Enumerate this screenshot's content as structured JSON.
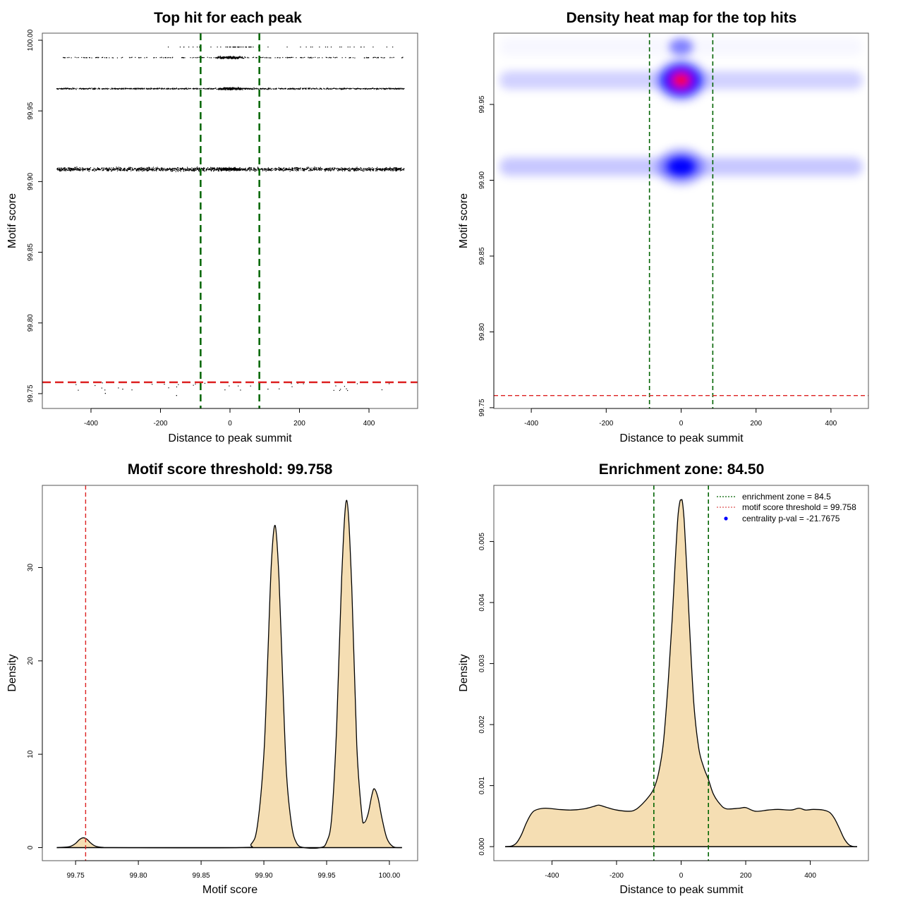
{
  "figure": {
    "background": "#ffffff",
    "colors": {
      "enrichment_line": "#006400",
      "threshold_line": "#dd2222",
      "density_fill": "#f5deb3",
      "density_stroke": "#000000",
      "scatter_point": "#000000",
      "heat_low": "#ffffff",
      "heat_mid": "#0000ff",
      "heat_high": "#ff0000",
      "legend_point": "#0000ff"
    }
  },
  "chart_data": [
    {
      "id": "top-hit-scatter",
      "type": "scatter",
      "title": "Top hit for each peak",
      "xlabel": "Distance to peak summit",
      "ylabel": "Motif score",
      "xlim": [
        -540,
        540
      ],
      "ylim": [
        99.7395,
        100.005
      ],
      "xticks": [
        -400,
        -200,
        0,
        200,
        400
      ],
      "xtick_labels": [
        "-400",
        "-200",
        "0",
        "200",
        "400"
      ],
      "yticks": [
        99.75,
        99.8,
        99.85,
        99.9,
        99.95,
        100.0
      ],
      "ytick_labels": [
        "99.75",
        "99.80",
        "99.85",
        "99.90",
        "99.95",
        "100.00"
      ],
      "grid": false,
      "vlines": [
        -84.5,
        84.5
      ],
      "hline": 99.758,
      "bands": [
        {
          "score": 99.9955,
          "density": "sparse",
          "x_range": [
            -260,
            470
          ],
          "center_cluster": [
            -10,
            70
          ]
        },
        {
          "score": 99.988,
          "density": "medium",
          "x_range": [
            -490,
            500
          ]
        },
        {
          "score": 99.966,
          "density": "dense",
          "x_range": [
            -500,
            500
          ]
        },
        {
          "score": 99.909,
          "density": "very-dense",
          "x_range": [
            -500,
            500
          ]
        },
        {
          "score": 99.755,
          "density": "sparse",
          "x_range": [
            -490,
            490
          ]
        }
      ],
      "outliers": [
        {
          "x": -360,
          "y": 99.7505
        },
        {
          "x": -155,
          "y": 99.749
        },
        {
          "x": -310,
          "y": 99.7535
        },
        {
          "x": 108,
          "y": 99.7535
        }
      ]
    },
    {
      "id": "density-heatmap",
      "type": "heatmap",
      "title": "Density heat map for the top hits",
      "xlabel": "Distance to peak summit",
      "ylabel": "Motif score",
      "xlim": [
        -500,
        500
      ],
      "ylim": [
        99.7495,
        99.997
      ],
      "xticks": [
        -400,
        -200,
        0,
        200,
        400
      ],
      "xtick_labels": [
        "-400",
        "-200",
        "0",
        "200",
        "400"
      ],
      "yticks": [
        99.75,
        99.8,
        99.85,
        99.9,
        99.95
      ],
      "ytick_labels": [
        "99.75",
        "99.80",
        "99.85",
        "99.90",
        "99.95"
      ],
      "grid": false,
      "vlines": [
        -84.5,
        84.5
      ],
      "hline": 99.758,
      "hotspots": [
        {
          "x": 0,
          "y": 99.966,
          "intensity": 1.0,
          "label": "max (red)"
        },
        {
          "x": 0,
          "y": 99.909,
          "intensity": 0.5
        },
        {
          "x": 0,
          "y": 99.988,
          "intensity": 0.22
        }
      ],
      "horizontal_bands": [
        {
          "y": 99.966,
          "intensity": 0.18
        },
        {
          "y": 99.909,
          "intensity": 0.22
        },
        {
          "y": 99.988,
          "intensity": 0.03
        }
      ]
    },
    {
      "id": "motif-score-density",
      "type": "area",
      "title": "Motif score threshold: 99.758",
      "xlabel": "Motif score",
      "ylabel": "Density",
      "xlim": [
        99.7235,
        100.0225
      ],
      "ylim": [
        -1.4,
        38.8
      ],
      "xticks": [
        99.75,
        99.8,
        99.85,
        99.9,
        99.95,
        100.0
      ],
      "xtick_labels": [
        "99.75",
        "99.80",
        "99.85",
        "99.90",
        "99.95",
        "100.00"
      ],
      "yticks": [
        0,
        10,
        20,
        30
      ],
      "ytick_labels": [
        "0",
        "10",
        "20",
        "30"
      ],
      "grid": false,
      "vline": 99.758,
      "x": [
        99.735,
        99.745,
        99.75,
        99.753,
        99.756,
        99.759,
        99.762,
        99.766,
        99.772,
        99.78,
        99.88,
        99.89,
        99.895,
        99.9,
        99.903,
        99.906,
        99.909,
        99.912,
        99.915,
        99.918,
        99.922,
        99.926,
        99.932,
        99.945,
        99.95,
        99.954,
        99.958,
        99.962,
        99.966,
        99.97,
        99.974,
        99.978,
        99.98,
        99.983,
        99.986,
        99.988,
        99.991,
        99.994,
        99.998,
        100.003,
        100.01
      ],
      "values": [
        0,
        0.1,
        0.45,
        0.85,
        1.05,
        0.9,
        0.5,
        0.15,
        0.02,
        0,
        0,
        0.4,
        2.5,
        10,
        20,
        30.5,
        34.5,
        29,
        18,
        8,
        2.5,
        0.5,
        0,
        0,
        0.6,
        3.2,
        13,
        29,
        37.2,
        28,
        11,
        3.6,
        2.7,
        3.6,
        5.6,
        6.3,
        5.3,
        3.2,
        1,
        0.1,
        0
      ]
    },
    {
      "id": "distance-density",
      "type": "area",
      "title": "Enrichment zone: 84.50",
      "xlabel": "Distance to peak summit",
      "ylabel": "Density",
      "xlim": [
        -580,
        580
      ],
      "ylim": [
        -0.00023,
        0.00592
      ],
      "xticks": [
        -400,
        -200,
        0,
        200,
        400
      ],
      "xtick_labels": [
        "-400",
        "-200",
        "0",
        "200",
        "400"
      ],
      "yticks": [
        0.0,
        0.001,
        0.002,
        0.003,
        0.004,
        0.005
      ],
      "ytick_labels": [
        "0.000",
        "0.001",
        "0.002",
        "0.003",
        "0.004",
        "0.005"
      ],
      "grid": false,
      "vlines": [
        -84.5,
        84.5
      ],
      "x": [
        -545,
        -525,
        -510,
        -495,
        -480,
        -465,
        -450,
        -420,
        -380,
        -340,
        -300,
        -270,
        -255,
        -235,
        -200,
        -160,
        -140,
        -120,
        -100,
        -84.5,
        -70,
        -55,
        -40,
        -28,
        -18,
        -10,
        -4,
        0,
        4,
        10,
        18,
        28,
        40,
        55,
        70,
        84.5,
        100,
        120,
        140,
        180,
        200,
        230,
        270,
        300,
        340,
        365,
        385,
        410,
        440,
        460,
        475,
        490,
        505,
        520,
        535,
        545
      ],
      "values": [
        0,
        1e-05,
        6e-05,
        0.00019,
        0.00038,
        0.00053,
        0.0006,
        0.00063,
        0.00061,
        0.0006,
        0.00062,
        0.00066,
        0.00068,
        0.00065,
        0.0006,
        0.00058,
        0.00061,
        0.0007,
        0.00082,
        0.00095,
        0.0012,
        0.0017,
        0.0027,
        0.0037,
        0.0047,
        0.0054,
        0.00565,
        0.00568,
        0.00565,
        0.0053,
        0.0045,
        0.0034,
        0.0023,
        0.0016,
        0.0013,
        0.0011,
        0.00086,
        0.0007,
        0.00062,
        0.00063,
        0.00064,
        0.00058,
        0.0006,
        0.00061,
        0.0006,
        0.00063,
        0.0006,
        0.00061,
        0.0006,
        0.00056,
        0.00046,
        0.0003,
        0.00013,
        3e-05,
        0,
        0
      ],
      "legend": {
        "position": "top-right",
        "entries": [
          {
            "label": "enrichment zone = 84.5",
            "symbol": "dotted-line",
            "color": "#006400"
          },
          {
            "label": "motif score threshold = 99.758",
            "symbol": "dotted-line",
            "color": "#dd5555"
          },
          {
            "label": "centrality p-val = -21.7675",
            "symbol": "point",
            "color": "#0000ff"
          }
        ]
      }
    }
  ]
}
